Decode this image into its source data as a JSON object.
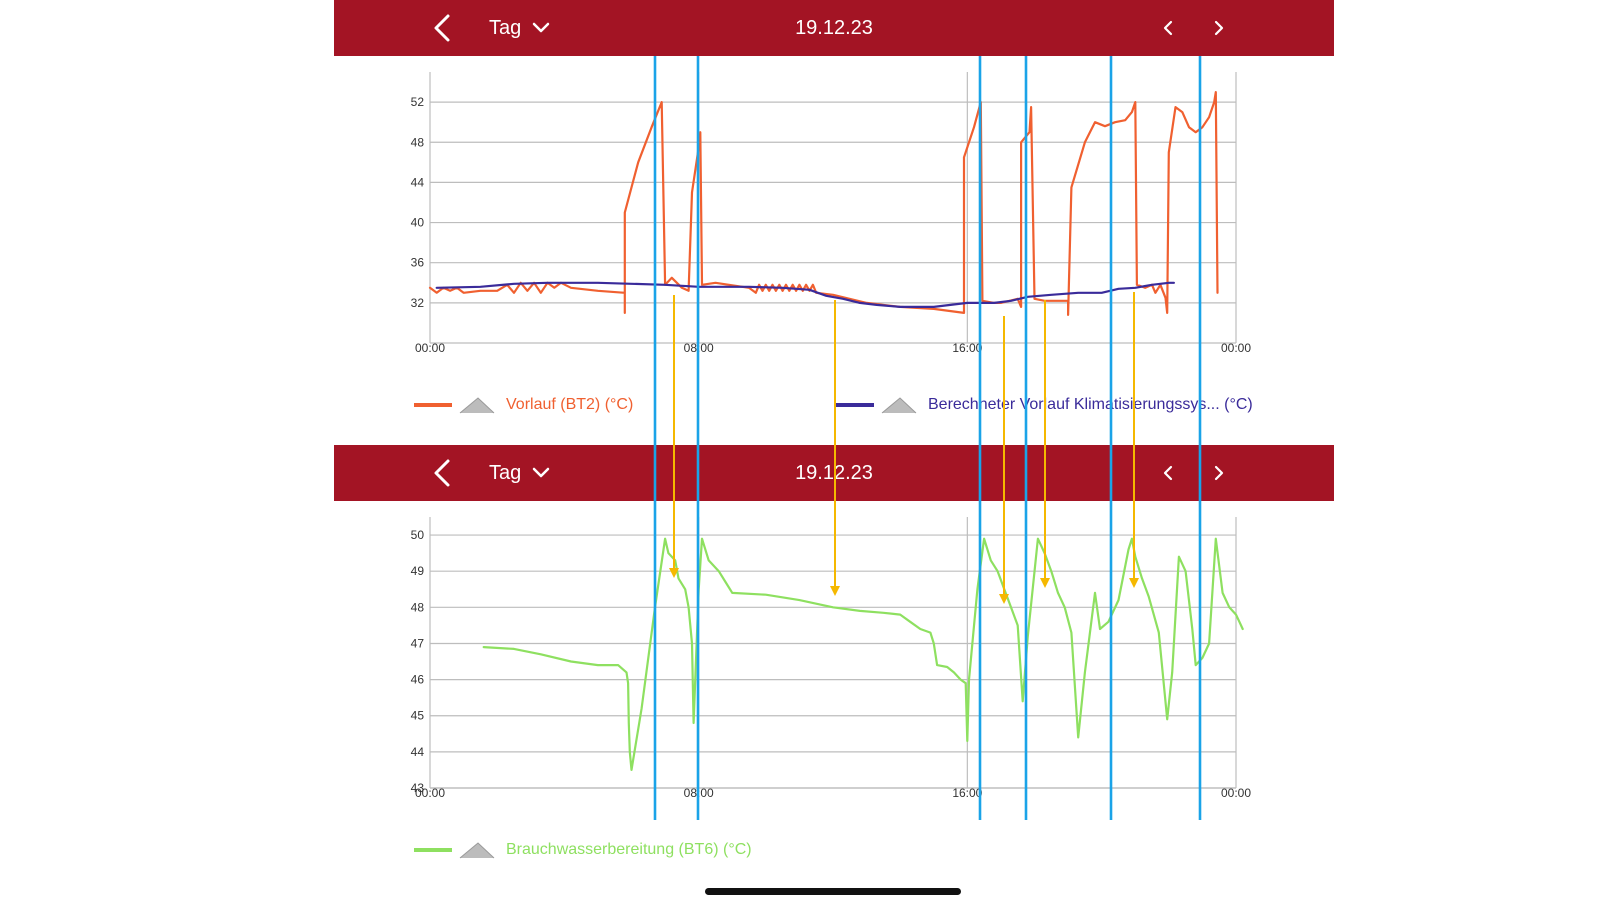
{
  "top_header": {
    "period_label": "Tag",
    "date": "19.12.23"
  },
  "bottom_header": {
    "period_label": "Tag",
    "date": "19.12.23"
  },
  "icons": {
    "back": "chevron-left-icon",
    "dropdown": "chevron-down-icon",
    "prev": "chevron-left-icon",
    "next": "chevron-right-icon",
    "legend_marker": "mountain-triangle-icon"
  },
  "colors": {
    "header": "#a31424",
    "vorlauf": "#f06030",
    "berechnet": "#3a2b9a",
    "brauchwasser": "#8ee060",
    "marker_blue": "#1aa3e8",
    "marker_arrow": "#f5b800",
    "grid": "#bdbdbd"
  },
  "chart_data": [
    {
      "type": "line",
      "title": "",
      "x_ticks": [
        "00:00",
        "08:00",
        "16:00",
        "00:00"
      ],
      "y_ticks": [
        32,
        36,
        40,
        44,
        48,
        52
      ],
      "ylim": [
        28,
        55
      ],
      "xlim_hours": [
        0,
        24
      ],
      "legend_placement": "bottom",
      "series": [
        {
          "name": "Vorlauf (BT2) (°C)",
          "color": "#f06030",
          "points": [
            [
              0.0,
              33.5
            ],
            [
              0.2,
              33.0
            ],
            [
              0.4,
              33.5
            ],
            [
              0.6,
              33.2
            ],
            [
              0.8,
              33.5
            ],
            [
              1.0,
              33.0
            ],
            [
              1.5,
              33.2
            ],
            [
              2.0,
              33.2
            ],
            [
              2.3,
              33.8
            ],
            [
              2.5,
              33.0
            ],
            [
              2.7,
              34.0
            ],
            [
              2.9,
              33.2
            ],
            [
              3.1,
              34.0
            ],
            [
              3.3,
              33.0
            ],
            [
              3.5,
              34.0
            ],
            [
              3.7,
              33.5
            ],
            [
              3.9,
              34.0
            ],
            [
              4.2,
              33.5
            ],
            [
              5.0,
              33.2
            ],
            [
              5.8,
              33.0
            ],
            [
              5.8,
              31.0
            ],
            [
              5.8,
              41.0
            ],
            [
              6.2,
              46.0
            ],
            [
              6.6,
              49.5
            ],
            [
              6.9,
              52.0
            ],
            [
              7.0,
              33.8
            ],
            [
              7.2,
              34.5
            ],
            [
              7.5,
              33.5
            ],
            [
              7.7,
              33.2
            ],
            [
              7.8,
              43.0
            ],
            [
              8.0,
              47.5
            ],
            [
              8.05,
              49.0
            ],
            [
              8.1,
              33.8
            ],
            [
              8.5,
              34.0
            ],
            [
              9.5,
              33.5
            ],
            [
              9.7,
              33.0
            ],
            [
              9.8,
              33.8
            ],
            [
              9.9,
              33.2
            ],
            [
              10.0,
              33.8
            ],
            [
              10.1,
              33.2
            ],
            [
              10.2,
              33.8
            ],
            [
              10.3,
              33.2
            ],
            [
              10.4,
              33.8
            ],
            [
              10.5,
              33.2
            ],
            [
              10.6,
              33.8
            ],
            [
              10.7,
              33.2
            ],
            [
              10.8,
              33.8
            ],
            [
              10.9,
              33.2
            ],
            [
              11.0,
              33.8
            ],
            [
              11.1,
              33.2
            ],
            [
              11.2,
              33.8
            ],
            [
              11.3,
              33.2
            ],
            [
              11.4,
              33.8
            ],
            [
              11.5,
              33.0
            ],
            [
              12.0,
              32.8
            ],
            [
              13.0,
              32.0
            ],
            [
              14.0,
              31.6
            ],
            [
              15.0,
              31.4
            ],
            [
              15.9,
              31.0
            ],
            [
              15.9,
              46.5
            ],
            [
              16.2,
              49.5
            ],
            [
              16.4,
              52.0
            ],
            [
              16.45,
              32.2
            ],
            [
              16.8,
              32.0
            ],
            [
              17.0,
              32.0
            ],
            [
              17.5,
              32.4
            ],
            [
              17.6,
              31.6
            ],
            [
              17.6,
              48.0
            ],
            [
              17.85,
              49.0
            ],
            [
              17.9,
              51.5
            ],
            [
              18.0,
              32.4
            ],
            [
              18.3,
              32.2
            ],
            [
              18.8,
              32.2
            ],
            [
              19.0,
              32.2
            ],
            [
              19.0,
              30.8
            ],
            [
              19.1,
              43.5
            ],
            [
              19.5,
              48.0
            ],
            [
              19.8,
              50.0
            ],
            [
              20.1,
              49.6
            ],
            [
              20.4,
              50.0
            ],
            [
              20.7,
              50.2
            ],
            [
              20.9,
              51.0
            ],
            [
              21.0,
              52.0
            ],
            [
              21.05,
              33.8
            ],
            [
              21.3,
              33.5
            ],
            [
              21.5,
              33.8
            ],
            [
              21.6,
              33.0
            ],
            [
              21.75,
              33.8
            ],
            [
              21.9,
              32.5
            ],
            [
              21.95,
              31.0
            ],
            [
              22.0,
              47.0
            ],
            [
              22.2,
              51.5
            ],
            [
              22.4,
              51.0
            ],
            [
              22.6,
              49.5
            ],
            [
              22.8,
              49.0
            ],
            [
              23.0,
              49.5
            ],
            [
              23.2,
              50.5
            ],
            [
              23.35,
              52.0
            ],
            [
              23.4,
              53.0
            ],
            [
              23.45,
              33.0
            ]
          ]
        },
        {
          "name": "Berechneter Vorlauf Klimatisierungssys... (°C)",
          "color": "#3a2b9a",
          "points": [
            [
              0.2,
              33.5
            ],
            [
              1.5,
              33.6
            ],
            [
              2.5,
              33.9
            ],
            [
              3.5,
              34.0
            ],
            [
              5.0,
              34.0
            ],
            [
              6.0,
              33.9
            ],
            [
              7.0,
              33.8
            ],
            [
              8.0,
              33.6
            ],
            [
              9.5,
              33.6
            ],
            [
              10.5,
              33.5
            ],
            [
              11.3,
              33.3
            ],
            [
              11.8,
              32.7
            ],
            [
              12.3,
              32.4
            ],
            [
              12.8,
              32.0
            ],
            [
              13.3,
              31.8
            ],
            [
              14.0,
              31.6
            ],
            [
              15.0,
              31.6
            ],
            [
              15.5,
              31.8
            ],
            [
              16.0,
              32.0
            ],
            [
              16.8,
              32.0
            ],
            [
              17.3,
              32.2
            ],
            [
              17.8,
              32.6
            ],
            [
              18.5,
              32.8
            ],
            [
              19.3,
              33.0
            ],
            [
              20.0,
              33.0
            ],
            [
              20.5,
              33.4
            ],
            [
              21.0,
              33.5
            ],
            [
              21.5,
              33.8
            ],
            [
              22.0,
              34.0
            ],
            [
              22.15,
              34.0
            ]
          ]
        }
      ]
    },
    {
      "type": "line",
      "title": "",
      "x_ticks": [
        "00:00",
        "08:00",
        "16:00",
        "00:00"
      ],
      "y_ticks": [
        43,
        44,
        45,
        46,
        47,
        48,
        49,
        50
      ],
      "ylim": [
        43,
        50.5
      ],
      "xlim_hours": [
        0,
        24
      ],
      "legend_placement": "bottom",
      "series": [
        {
          "name": "Brauchwasserbereitung (BT6) (°C)",
          "color": "#8ee060",
          "points": [
            [
              1.6,
              46.9
            ],
            [
              2.5,
              46.85
            ],
            [
              3.3,
              46.7
            ],
            [
              4.2,
              46.5
            ],
            [
              5.0,
              46.4
            ],
            [
              5.6,
              46.4
            ],
            [
              5.85,
              46.2
            ],
            [
              5.9,
              45.9
            ],
            [
              5.92,
              44.8
            ],
            [
              5.95,
              44.0
            ],
            [
              6.0,
              43.5
            ],
            [
              6.3,
              45.2
            ],
            [
              6.7,
              48.0
            ],
            [
              7.0,
              49.9
            ],
            [
              7.1,
              49.5
            ],
            [
              7.3,
              49.3
            ],
            [
              7.4,
              48.8
            ],
            [
              7.6,
              48.5
            ],
            [
              7.7,
              48.0
            ],
            [
              7.8,
              47.0
            ],
            [
              7.85,
              44.8
            ],
            [
              8.0,
              48.5
            ],
            [
              8.1,
              49.9
            ],
            [
              8.3,
              49.3
            ],
            [
              8.6,
              49.0
            ],
            [
              8.8,
              48.7
            ],
            [
              9.0,
              48.4
            ],
            [
              10.0,
              48.35
            ],
            [
              11.0,
              48.2
            ],
            [
              12.0,
              48.0
            ],
            [
              12.8,
              47.9
            ],
            [
              13.5,
              47.85
            ],
            [
              14.0,
              47.8
            ],
            [
              14.3,
              47.6
            ],
            [
              14.6,
              47.4
            ],
            [
              14.9,
              47.3
            ],
            [
              15.0,
              47.0
            ],
            [
              15.1,
              46.4
            ],
            [
              15.4,
              46.35
            ],
            [
              15.6,
              46.2
            ],
            [
              15.8,
              46.0
            ],
            [
              15.95,
              45.9
            ],
            [
              16.0,
              44.3
            ],
            [
              16.05,
              46.0
            ],
            [
              16.3,
              48.5
            ],
            [
              16.5,
              49.9
            ],
            [
              16.7,
              49.3
            ],
            [
              16.9,
              49.0
            ],
            [
              17.1,
              48.5
            ],
            [
              17.3,
              48.0
            ],
            [
              17.5,
              47.5
            ],
            [
              17.65,
              45.4
            ],
            [
              17.8,
              47.2
            ],
            [
              18.1,
              49.9
            ],
            [
              18.3,
              49.5
            ],
            [
              18.5,
              49.0
            ],
            [
              18.7,
              48.4
            ],
            [
              18.9,
              48.0
            ],
            [
              19.1,
              47.3
            ],
            [
              19.3,
              44.4
            ],
            [
              19.5,
              46.2
            ],
            [
              19.8,
              48.4
            ],
            [
              19.95,
              47.4
            ],
            [
              20.2,
              47.6
            ],
            [
              20.5,
              48.2
            ],
            [
              20.8,
              49.6
            ],
            [
              20.9,
              49.9
            ],
            [
              21.0,
              49.4
            ],
            [
              21.2,
              48.8
            ],
            [
              21.4,
              48.3
            ],
            [
              21.7,
              47.3
            ],
            [
              21.95,
              44.9
            ],
            [
              22.1,
              46.2
            ],
            [
              22.3,
              49.4
            ],
            [
              22.5,
              49.0
            ],
            [
              22.7,
              47.4
            ],
            [
              22.8,
              46.4
            ],
            [
              23.0,
              46.6
            ],
            [
              23.2,
              47.0
            ],
            [
              23.4,
              49.9
            ],
            [
              23.6,
              48.4
            ],
            [
              23.8,
              48.0
            ],
            [
              24.0,
              47.8
            ],
            [
              24.1,
              47.6
            ],
            [
              24.2,
              47.4
            ]
          ]
        }
      ]
    }
  ],
  "legend": {
    "vorlauf": "Vorlauf (BT2) (°C)",
    "berechnet": "Berechneter Vorlauf Klimatisierungssys... (°C)",
    "brauchwasser": "Brauchwasserbereitung (BT6) (°C)"
  }
}
